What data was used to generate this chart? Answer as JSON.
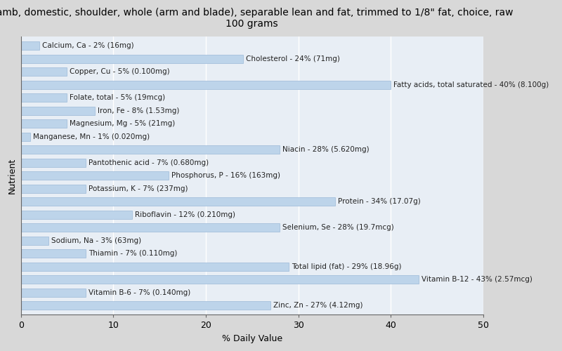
{
  "title": "Lamb, domestic, shoulder, whole (arm and blade), separable lean and fat, trimmed to 1/8\" fat, choice, raw\n100 grams",
  "xlabel": "% Daily Value",
  "ylabel": "Nutrient",
  "xlim": [
    0,
    50
  ],
  "fig_background": "#d8d8d8",
  "plot_background": "#e8eef5",
  "bar_color": "#bdd4ea",
  "bar_edge_color": "#9ab8d8",
  "nutrients": [
    "Calcium, Ca - 2% (16mg)",
    "Cholesterol - 24% (71mg)",
    "Copper, Cu - 5% (0.100mg)",
    "Fatty acids, total saturated - 40% (8.100g)",
    "Folate, total - 5% (19mcg)",
    "Iron, Fe - 8% (1.53mg)",
    "Magnesium, Mg - 5% (21mg)",
    "Manganese, Mn - 1% (0.020mg)",
    "Niacin - 28% (5.620mg)",
    "Pantothenic acid - 7% (0.680mg)",
    "Phosphorus, P - 16% (163mg)",
    "Potassium, K - 7% (237mg)",
    "Protein - 34% (17.07g)",
    "Riboflavin - 12% (0.210mg)",
    "Selenium, Se - 28% (19.7mcg)",
    "Sodium, Na - 3% (63mg)",
    "Thiamin - 7% (0.110mg)",
    "Total lipid (fat) - 29% (18.96g)",
    "Vitamin B-12 - 43% (2.57mcg)",
    "Vitamin B-6 - 7% (0.140mg)",
    "Zinc, Zn - 27% (4.12mg)"
  ],
  "values": [
    2,
    24,
    5,
    40,
    5,
    8,
    5,
    1,
    28,
    7,
    16,
    7,
    34,
    12,
    28,
    3,
    7,
    29,
    43,
    7,
    27
  ],
  "title_fontsize": 10,
  "axis_label_fontsize": 9,
  "tick_fontsize": 9,
  "bar_label_fontsize": 7.5,
  "bar_height": 0.65
}
